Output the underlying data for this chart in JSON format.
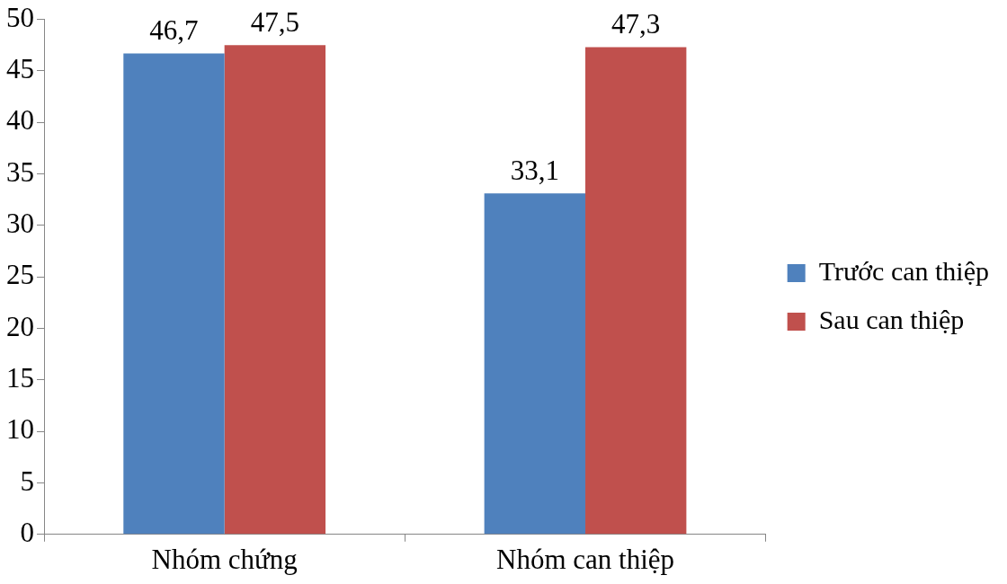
{
  "chart_data": {
    "type": "bar",
    "categories": [
      "Nhóm chứng",
      "Nhóm can thiệp"
    ],
    "series": [
      {
        "name": "Trước can thiệp",
        "color": "#4f81bd",
        "values": [
          46.7,
          33.1
        ],
        "value_labels": [
          "46,7",
          "33,1"
        ]
      },
      {
        "name": "Sau can thiệp",
        "color": "#c0504d",
        "values": [
          47.5,
          47.3
        ],
        "value_labels": [
          "47,5",
          "47,3"
        ]
      }
    ],
    "ylim": [
      0,
      50
    ],
    "yticks": [
      0,
      5,
      10,
      15,
      20,
      25,
      30,
      35,
      40,
      45,
      50
    ],
    "grid": false,
    "legend": "right"
  }
}
